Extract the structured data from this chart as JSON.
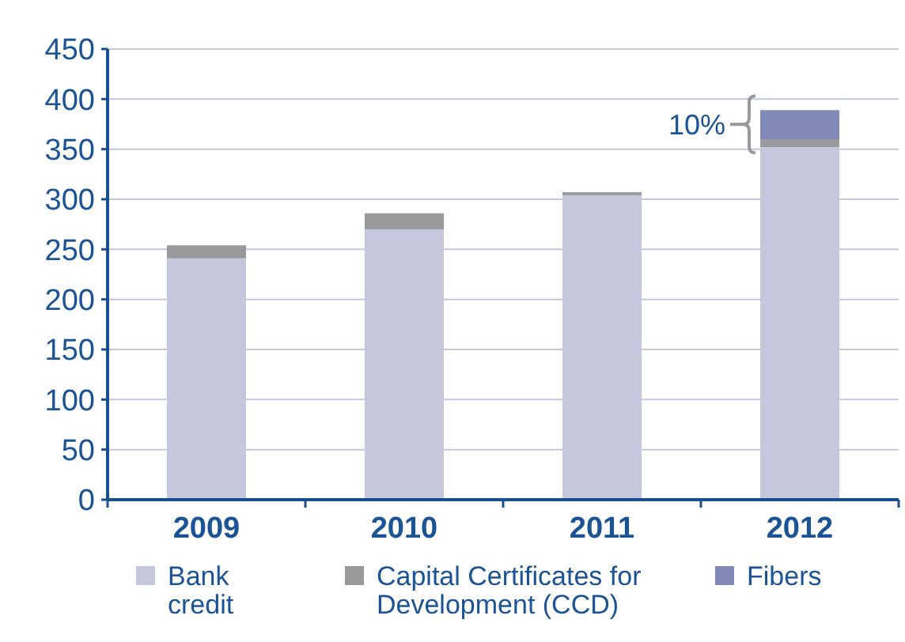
{
  "chart_data": {
    "type": "bar",
    "stacked": true,
    "categories": [
      "2009",
      "2010",
      "2011",
      "2012"
    ],
    "series": [
      {
        "name": "Bank credit",
        "color": "#c5c8dc",
        "values": [
          241,
          270,
          304,
          352
        ]
      },
      {
        "name": "Capital Certificates for Development (CCD)",
        "color": "#999a9c",
        "values": [
          13,
          16,
          3,
          8
        ]
      },
      {
        "name": "Fibers",
        "color": "#8189b8",
        "values": [
          0,
          0,
          0,
          29
        ]
      }
    ],
    "ylim": [
      0,
      450
    ],
    "yticks": [
      0,
      50,
      100,
      150,
      200,
      250,
      300,
      350,
      400,
      450
    ],
    "grid": "y",
    "legend": "bottom",
    "annotations": [
      "10%"
    ]
  }
}
